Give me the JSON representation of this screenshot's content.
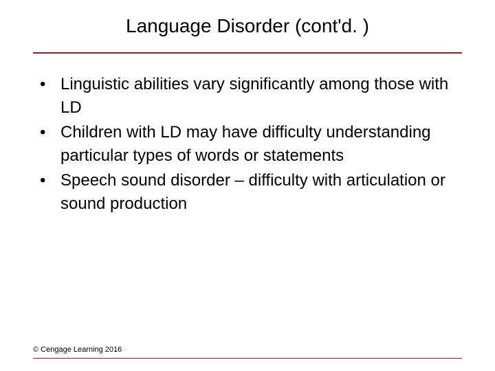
{
  "title": "Language Disorder (cont'd. )",
  "bullets": [
    "Linguistic abilities vary significantly among those with LD",
    "Children with LD may have difficulty understanding particular types of words or statements",
    "Speech sound disorder – difficulty with articulation or sound production"
  ],
  "copyright": "© Cengage Learning 2016",
  "colors": {
    "divider": "#8b2020",
    "text": "#000000",
    "background": "#ffffff"
  },
  "typography": {
    "title_fontsize": 28,
    "body_fontsize": 24,
    "footer_fontsize": 11,
    "font_family": "Arial"
  }
}
